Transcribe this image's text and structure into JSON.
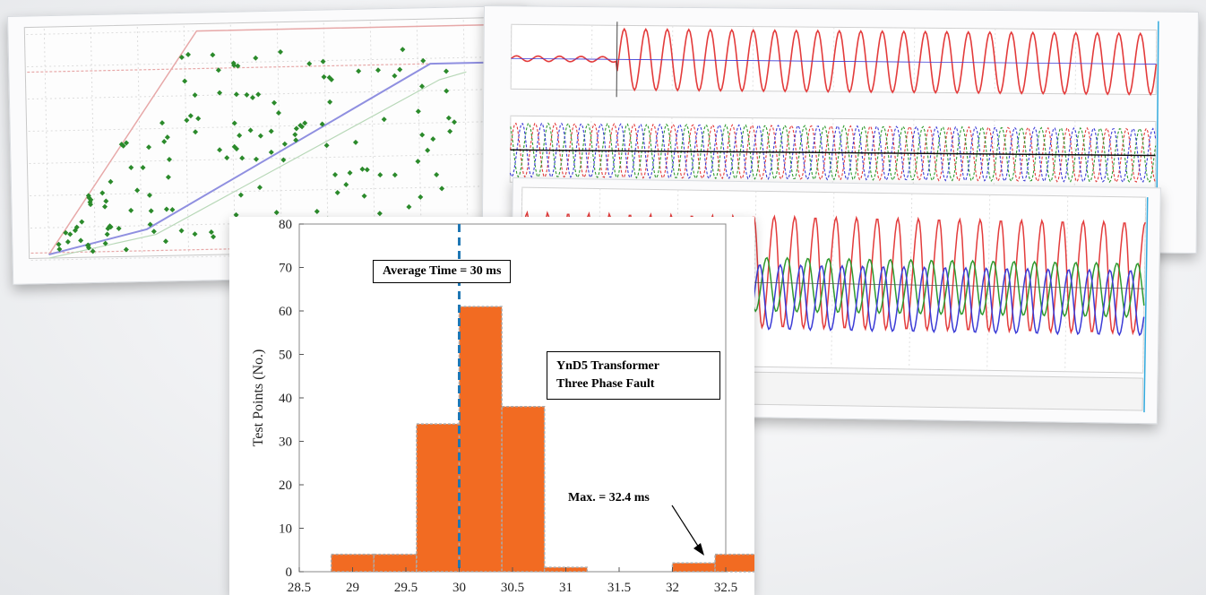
{
  "background_panels": {
    "operating_characteristic": {
      "line_color": "#8f8fe0",
      "boundary_color": "#e7a8a8",
      "marker_color": "#2b8a2b"
    },
    "waveforms": {
      "phase_colors": [
        "#e33b3b",
        "#2e9a2e",
        "#3b3bd6"
      ]
    }
  },
  "colors": {
    "bar_fill": "#f26b22",
    "bar_edge": "#aaaaaa",
    "average_line": "#1f77b4"
  },
  "chart_data": {
    "type": "bar",
    "xlabel": "",
    "ylabel": "Test Points (No.)",
    "xlim": [
      28.5,
      32.5
    ],
    "ylim": [
      0,
      80
    ],
    "x_ticks": [
      "28.5",
      "29",
      "29.5",
      "30",
      "30.5",
      "31",
      "31.5",
      "32",
      "32.5"
    ],
    "y_ticks": [
      "0",
      "10",
      "20",
      "30",
      "40",
      "50",
      "60",
      "70",
      "80"
    ],
    "bins": [
      {
        "x0": 28.8,
        "x1": 29.2,
        "value": 4
      },
      {
        "x0": 29.2,
        "x1": 29.6,
        "value": 4
      },
      {
        "x0": 29.6,
        "x1": 30.0,
        "value": 34
      },
      {
        "x0": 30.0,
        "x1": 30.4,
        "value": 61
      },
      {
        "x0": 30.4,
        "x1": 30.8,
        "value": 38
      },
      {
        "x0": 30.8,
        "x1": 31.2,
        "value": 1
      },
      {
        "x0": 31.2,
        "x1": 31.6,
        "value": 0
      },
      {
        "x0": 31.6,
        "x1": 32.0,
        "value": 0
      },
      {
        "x0": 32.0,
        "x1": 32.4,
        "value": 2
      },
      {
        "x0": 32.4,
        "x1": 32.8,
        "value": 4
      }
    ],
    "average_line_x": 30.0,
    "grid": false,
    "annotations": {
      "average": "Average Time = 30 ms",
      "fault_line1": "YnD5 Transformer",
      "fault_line2": "Three Phase Fault",
      "max": "Max. = 32.4 ms"
    }
  }
}
